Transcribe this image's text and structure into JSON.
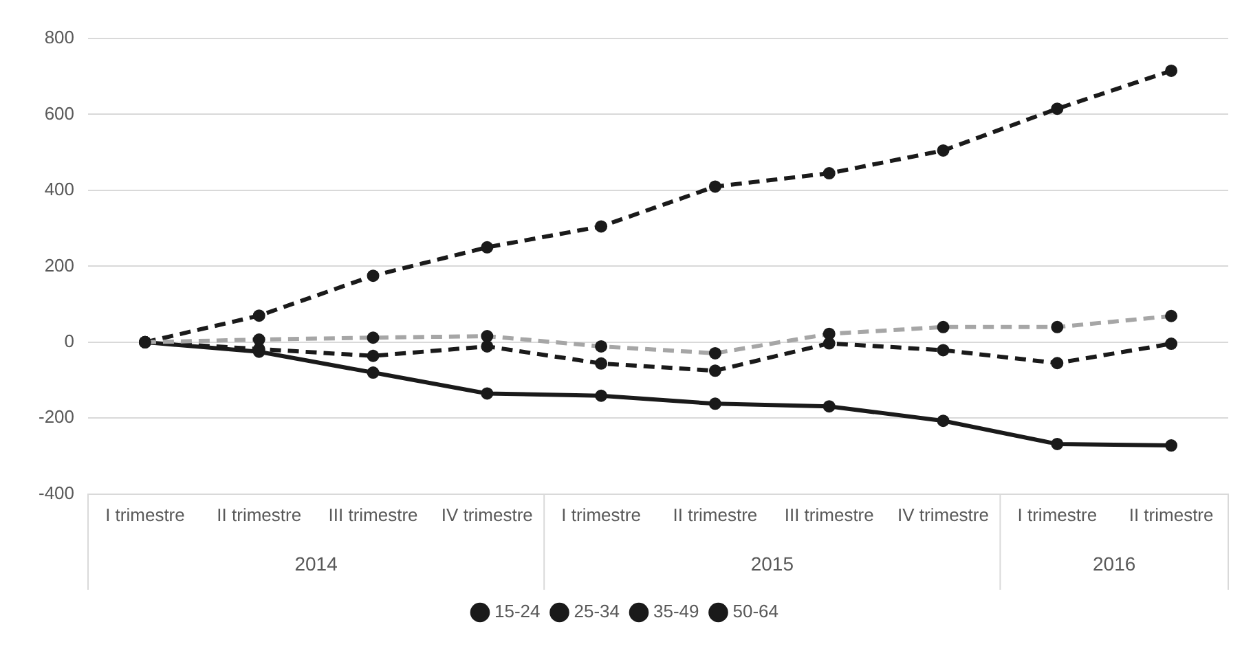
{
  "chart_data": {
    "type": "line",
    "categories": [
      "I trimestre",
      "II trimestre",
      "III trimestre",
      "IV trimestre",
      "I trimestre",
      "II trimestre",
      "III trimestre",
      "IV trimestre",
      "I trimestre",
      "II trimestre"
    ],
    "series": [
      {
        "name": "15-24",
        "color": "#a6a6a6",
        "line_style": "dashed",
        "values": [
          0,
          7,
          12,
          16,
          -11,
          -29,
          22,
          40,
          40,
          69
        ]
      },
      {
        "name": "25-34",
        "color": "#1a1a1a",
        "line_style": "dashed",
        "values": [
          0,
          -18,
          -36,
          -11,
          -56,
          -75,
          -3,
          -21,
          -55,
          -4
        ]
      },
      {
        "name": "35-49",
        "color": "#1a1a1a",
        "line_style": "solid",
        "values": [
          0,
          -25,
          -80,
          -135,
          -141,
          -162,
          -169,
          -207,
          -268,
          -272
        ]
      },
      {
        "name": "50-64",
        "color": "#1a1a1a",
        "line_style": "dashed",
        "values": [
          0,
          70,
          175,
          250,
          305,
          410,
          445,
          505,
          615,
          715
        ]
      }
    ],
    "ylim": [
      -400,
      800
    ],
    "yticks": [
      -400,
      -200,
      0,
      200,
      400,
      600,
      800
    ],
    "grid": "y",
    "legend": "bottom",
    "marker": "circle",
    "annotations": [
      "2014",
      "2015",
      "2016"
    ]
  }
}
